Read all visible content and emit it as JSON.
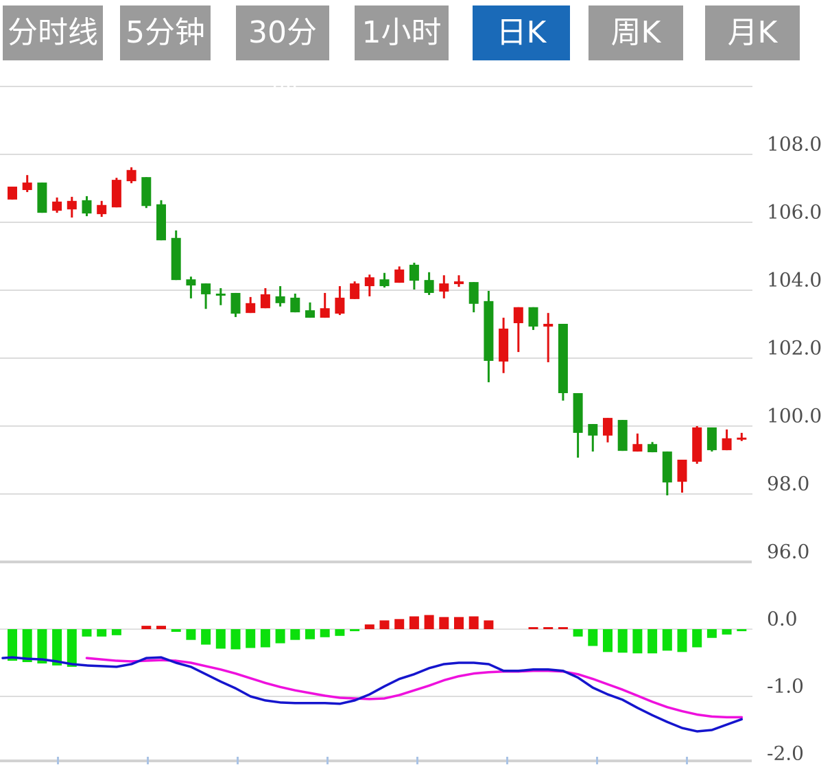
{
  "tab_bar": {
    "tabs": [
      {
        "label": "分时线",
        "active": false
      },
      {
        "label": "5分钟",
        "active": false
      },
      {
        "label": "30分钟",
        "active": false
      },
      {
        "label": "1小时",
        "active": false
      },
      {
        "label": "日K",
        "active": true
      },
      {
        "label": "周K",
        "active": false
      },
      {
        "label": "月K",
        "active": false
      }
    ]
  },
  "axes": {
    "price_labels": [
      {
        "value": 108.0,
        "text": "108.0"
      },
      {
        "value": 106.0,
        "text": "106.0"
      },
      {
        "value": 104.0,
        "text": "104.0"
      },
      {
        "value": 102.0,
        "text": "102.0"
      },
      {
        "value": 100.0,
        "text": "100.0"
      },
      {
        "value": 98.0,
        "text": "98.0"
      },
      {
        "value": 96.0,
        "text": "96.0"
      }
    ],
    "macd_labels": [
      {
        "value": 0.0,
        "text": "0.0"
      },
      {
        "value": -1.0,
        "text": "-1.0"
      },
      {
        "value": -2.0,
        "text": "-2.0"
      }
    ]
  },
  "colors": {
    "tab_bg": "#9b9b9b",
    "tab_active_bg": "#1a6ab8",
    "tab_text": "#ffffff",
    "up": "#e41111",
    "down": "#169a16",
    "hist_up": "#e41111",
    "hist_down": "#0ce00c",
    "dif_line": "#1515cd",
    "dea_line": "#ee11dd",
    "grid": "#dcdcdc",
    "panel_divider": "#d2d2d2",
    "axis_text": "#4e4e4e",
    "x_tick": "#a9c3e6",
    "bg": "#ffffff"
  },
  "chart_data": {
    "type": "candlestick",
    "note": "daily K-line with MACD sub-panel; red = rise, green = fall",
    "panels": [
      {
        "name": "price",
        "ylim": [
          95.7,
          110.0
        ],
        "grid_values": [
          110,
          108,
          106,
          104,
          102,
          100,
          98
        ],
        "labeled": [
          108,
          106,
          104,
          102,
          100,
          98,
          96
        ],
        "grid": true,
        "legend": false
      },
      {
        "name": "macd",
        "ylim": [
          -2.0,
          0.15
        ],
        "grid_values": [
          0,
          -1,
          -2
        ],
        "grid": true
      }
    ],
    "candles": [
      {
        "o": 106.67,
        "c": 107.05,
        "h": 107.05,
        "l": 106.67,
        "dir": "up"
      },
      {
        "o": 106.95,
        "c": 107.17,
        "h": 107.39,
        "l": 106.89,
        "dir": "up"
      },
      {
        "o": 107.17,
        "c": 106.28,
        "h": 107.17,
        "l": 106.28,
        "dir": "down"
      },
      {
        "o": 106.34,
        "c": 106.61,
        "h": 106.73,
        "l": 106.28,
        "dir": "up"
      },
      {
        "o": 106.38,
        "c": 106.63,
        "h": 106.75,
        "l": 106.14,
        "dir": "up"
      },
      {
        "o": 106.65,
        "c": 106.26,
        "h": 106.77,
        "l": 106.18,
        "dir": "down"
      },
      {
        "o": 106.24,
        "c": 106.51,
        "h": 106.63,
        "l": 106.16,
        "dir": "up"
      },
      {
        "o": 106.44,
        "c": 107.25,
        "h": 107.31,
        "l": 106.44,
        "dir": "up"
      },
      {
        "o": 107.21,
        "c": 107.54,
        "h": 107.62,
        "l": 107.15,
        "dir": "up"
      },
      {
        "o": 107.33,
        "c": 106.48,
        "h": 107.33,
        "l": 106.42,
        "dir": "down"
      },
      {
        "o": 106.53,
        "c": 105.47,
        "h": 106.65,
        "l": 105.47,
        "dir": "down"
      },
      {
        "o": 105.54,
        "c": 104.3,
        "h": 105.76,
        "l": 104.3,
        "dir": "down"
      },
      {
        "o": 104.32,
        "c": 104.14,
        "h": 104.4,
        "l": 103.76,
        "dir": "down"
      },
      {
        "o": 104.2,
        "c": 103.88,
        "h": 104.2,
        "l": 103.45,
        "dir": "down"
      },
      {
        "o": 103.9,
        "c": 103.86,
        "h": 104.06,
        "l": 103.56,
        "dir": "down"
      },
      {
        "o": 103.92,
        "c": 103.31,
        "h": 103.92,
        "l": 103.21,
        "dir": "down"
      },
      {
        "o": 103.33,
        "c": 103.62,
        "h": 103.8,
        "l": 103.33,
        "dir": "up"
      },
      {
        "o": 103.47,
        "c": 103.88,
        "h": 104.06,
        "l": 103.47,
        "dir": "up"
      },
      {
        "o": 103.82,
        "c": 103.62,
        "h": 104.12,
        "l": 103.52,
        "dir": "down"
      },
      {
        "o": 103.78,
        "c": 103.35,
        "h": 103.9,
        "l": 103.35,
        "dir": "down"
      },
      {
        "o": 103.41,
        "c": 103.19,
        "h": 103.64,
        "l": 103.19,
        "dir": "down"
      },
      {
        "o": 103.19,
        "c": 103.47,
        "h": 103.92,
        "l": 103.19,
        "dir": "up"
      },
      {
        "o": 103.31,
        "c": 103.78,
        "h": 104.12,
        "l": 103.27,
        "dir": "up"
      },
      {
        "o": 103.74,
        "c": 104.2,
        "h": 104.26,
        "l": 103.74,
        "dir": "up"
      },
      {
        "o": 104.12,
        "c": 104.38,
        "h": 104.46,
        "l": 103.82,
        "dir": "up"
      },
      {
        "o": 104.32,
        "c": 104.12,
        "h": 104.51,
        "l": 104.08,
        "dir": "down"
      },
      {
        "o": 104.22,
        "c": 104.61,
        "h": 104.7,
        "l": 104.22,
        "dir": "up"
      },
      {
        "o": 104.75,
        "c": 104.28,
        "h": 104.81,
        "l": 104.02,
        "dir": "down"
      },
      {
        "o": 104.3,
        "c": 103.92,
        "h": 104.53,
        "l": 103.86,
        "dir": "down"
      },
      {
        "o": 103.96,
        "c": 104.2,
        "h": 104.44,
        "l": 103.76,
        "dir": "up"
      },
      {
        "o": 104.18,
        "c": 104.26,
        "h": 104.44,
        "l": 104.1,
        "dir": "up"
      },
      {
        "o": 104.24,
        "c": 103.6,
        "h": 104.24,
        "l": 103.35,
        "dir": "down"
      },
      {
        "o": 103.68,
        "c": 101.92,
        "h": 103.98,
        "l": 101.29,
        "dir": "down"
      },
      {
        "o": 101.9,
        "c": 102.87,
        "h": 103.19,
        "l": 101.56,
        "dir": "up"
      },
      {
        "o": 103.03,
        "c": 103.5,
        "h": 103.5,
        "l": 102.18,
        "dir": "up"
      },
      {
        "o": 103.5,
        "c": 102.93,
        "h": 103.5,
        "l": 102.83,
        "dir": "down"
      },
      {
        "o": 102.93,
        "c": 103.01,
        "h": 103.33,
        "l": 101.88,
        "dir": "up"
      },
      {
        "o": 103.01,
        "c": 100.97,
        "h": 103.01,
        "l": 100.75,
        "dir": "down"
      },
      {
        "o": 100.97,
        "c": 99.8,
        "h": 100.97,
        "l": 99.07,
        "dir": "down"
      },
      {
        "o": 100.06,
        "c": 99.72,
        "h": 100.06,
        "l": 99.25,
        "dir": "down"
      },
      {
        "o": 99.72,
        "c": 100.24,
        "h": 100.24,
        "l": 99.52,
        "dir": "up"
      },
      {
        "o": 100.18,
        "c": 99.27,
        "h": 100.18,
        "l": 99.27,
        "dir": "down"
      },
      {
        "o": 99.25,
        "c": 99.47,
        "h": 99.78,
        "l": 99.25,
        "dir": "up"
      },
      {
        "o": 99.47,
        "c": 99.23,
        "h": 99.53,
        "l": 99.23,
        "dir": "down"
      },
      {
        "o": 99.25,
        "c": 98.34,
        "h": 99.25,
        "l": 97.96,
        "dir": "down"
      },
      {
        "o": 98.36,
        "c": 99.01,
        "h": 99.01,
        "l": 98.04,
        "dir": "up"
      },
      {
        "o": 98.95,
        "c": 99.96,
        "h": 100.0,
        "l": 98.89,
        "dir": "up"
      },
      {
        "o": 99.96,
        "c": 99.29,
        "h": 99.96,
        "l": 99.25,
        "dir": "down"
      },
      {
        "o": 99.29,
        "c": 99.64,
        "h": 99.9,
        "l": 99.29,
        "dir": "up"
      },
      {
        "o": 99.6,
        "c": 99.66,
        "h": 99.8,
        "l": 99.56,
        "dir": "up"
      }
    ],
    "macd_histogram": [
      -0.47,
      -0.49,
      -0.51,
      -0.54,
      -0.56,
      -0.11,
      -0.11,
      -0.09,
      0,
      0.05,
      0.05,
      -0.04,
      -0.16,
      -0.23,
      -0.29,
      -0.3,
      -0.28,
      -0.27,
      -0.21,
      -0.16,
      -0.15,
      -0.12,
      -0.1,
      -0.03,
      0.07,
      0.13,
      0.15,
      0.19,
      0.21,
      0.18,
      0.18,
      0.19,
      0.13,
      0,
      0,
      0.03,
      0.03,
      0.03,
      -0.11,
      -0.25,
      -0.34,
      -0.35,
      -0.36,
      -0.36,
      -0.32,
      -0.34,
      -0.27,
      -0.13,
      -0.08,
      -0.03
    ],
    "dif": [
      -0.42,
      -0.44,
      -0.45,
      -0.48,
      -0.52,
      -0.54,
      -0.55,
      -0.56,
      -0.52,
      -0.43,
      -0.42,
      -0.5,
      -0.56,
      -0.67,
      -0.78,
      -0.88,
      -1.0,
      -1.06,
      -1.09,
      -1.1,
      -1.1,
      -1.1,
      -1.11,
      -1.06,
      -0.97,
      -0.85,
      -0.74,
      -0.67,
      -0.58,
      -0.52,
      -0.5,
      -0.5,
      -0.52,
      -0.62,
      -0.62,
      -0.6,
      -0.6,
      -0.62,
      -0.72,
      -0.87,
      -0.97,
      -1.05,
      -1.17,
      -1.28,
      -1.38,
      -1.47,
      -1.52,
      -1.5,
      -1.42,
      -1.34
    ],
    "dea": [
      null,
      null,
      null,
      null,
      null,
      -0.43,
      -0.45,
      -0.47,
      -0.48,
      -0.47,
      -0.46,
      -0.47,
      -0.5,
      -0.55,
      -0.6,
      -0.66,
      -0.73,
      -0.8,
      -0.86,
      -0.91,
      -0.95,
      -0.99,
      -1.02,
      -1.03,
      -1.04,
      -1.03,
      -0.98,
      -0.91,
      -0.84,
      -0.76,
      -0.7,
      -0.66,
      -0.64,
      -0.63,
      -0.63,
      -0.62,
      -0.62,
      -0.63,
      -0.67,
      -0.74,
      -0.82,
      -0.9,
      -0.99,
      -1.08,
      -1.16,
      -1.22,
      -1.27,
      -1.3,
      -1.31,
      -1.31
    ]
  }
}
